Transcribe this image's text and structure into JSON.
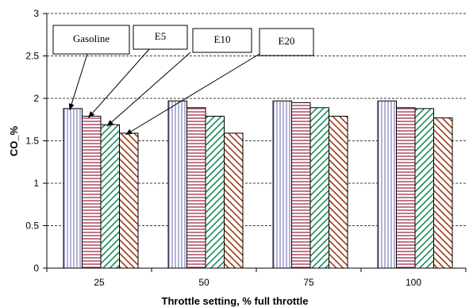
{
  "chart_data": {
    "type": "bar",
    "categories": [
      "25",
      "50",
      "75",
      "100"
    ],
    "series": [
      {
        "name": "Gasoline",
        "values": [
          1.88,
          1.97,
          1.97,
          1.97
        ],
        "color": "#8080c0",
        "pattern": "vertical-lines"
      },
      {
        "name": "E5",
        "values": [
          1.79,
          1.89,
          1.95,
          1.89
        ],
        "color": "#a0304a",
        "pattern": "horizontal-lines"
      },
      {
        "name": "E10",
        "values": [
          1.69,
          1.79,
          1.89,
          1.88
        ],
        "color": "#1a8a5a",
        "pattern": "diagonal-down"
      },
      {
        "name": "E20",
        "values": [
          1.59,
          1.59,
          1.79,
          1.77
        ],
        "color": "#9a3a14",
        "pattern": "diagonal-up"
      }
    ],
    "xlabel": "Throttle setting, % full throttle",
    "ylabel": "CO_%",
    "ylim": [
      0,
      3
    ],
    "yticks": [
      "0",
      "0.5",
      "1",
      "1.5",
      "2",
      "2.5",
      "3"
    ],
    "grid": "horizontal-dashed",
    "legend": "callouts pointing to the first group of bars"
  }
}
